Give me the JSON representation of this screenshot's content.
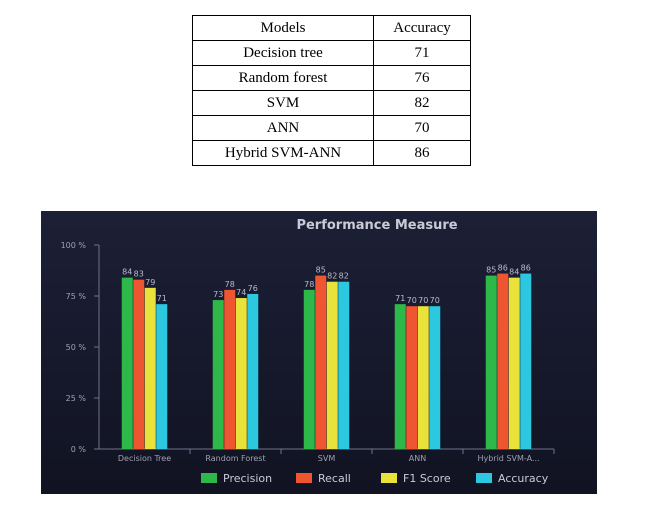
{
  "table": {
    "headers": [
      "Models",
      "Accuracy"
    ],
    "rows": [
      [
        "Decision tree",
        "71"
      ],
      [
        "Random forest",
        "76"
      ],
      [
        "SVM",
        "82"
      ],
      [
        "ANN",
        "70"
      ],
      [
        "Hybrid SVM-ANN",
        "86"
      ]
    ]
  },
  "chart_data": {
    "type": "bar",
    "title": "Performance Measure",
    "categories": [
      "Decision Tree",
      "Random Forest",
      "SVM",
      "ANN",
      "Hybrid SVM-A..."
    ],
    "series": [
      {
        "name": "Precision",
        "color": "#2eb84a",
        "values": [
          84,
          73,
          78,
          71,
          85
        ]
      },
      {
        "name": "Recall",
        "color": "#ee5530",
        "values": [
          83,
          78,
          85,
          70,
          86
        ]
      },
      {
        "name": "F1 Score",
        "color": "#e8e23a",
        "values": [
          79,
          74,
          82,
          70,
          84
        ]
      },
      {
        "name": "Accuracy",
        "color": "#2bc8df",
        "values": [
          71,
          76,
          82,
          70,
          86
        ]
      }
    ],
    "yticks": [
      "0 %",
      "25 %",
      "50 %",
      "75 %",
      "100 %"
    ],
    "ylim": [
      0,
      100
    ],
    "grid": false,
    "legend_position": "bottom"
  }
}
